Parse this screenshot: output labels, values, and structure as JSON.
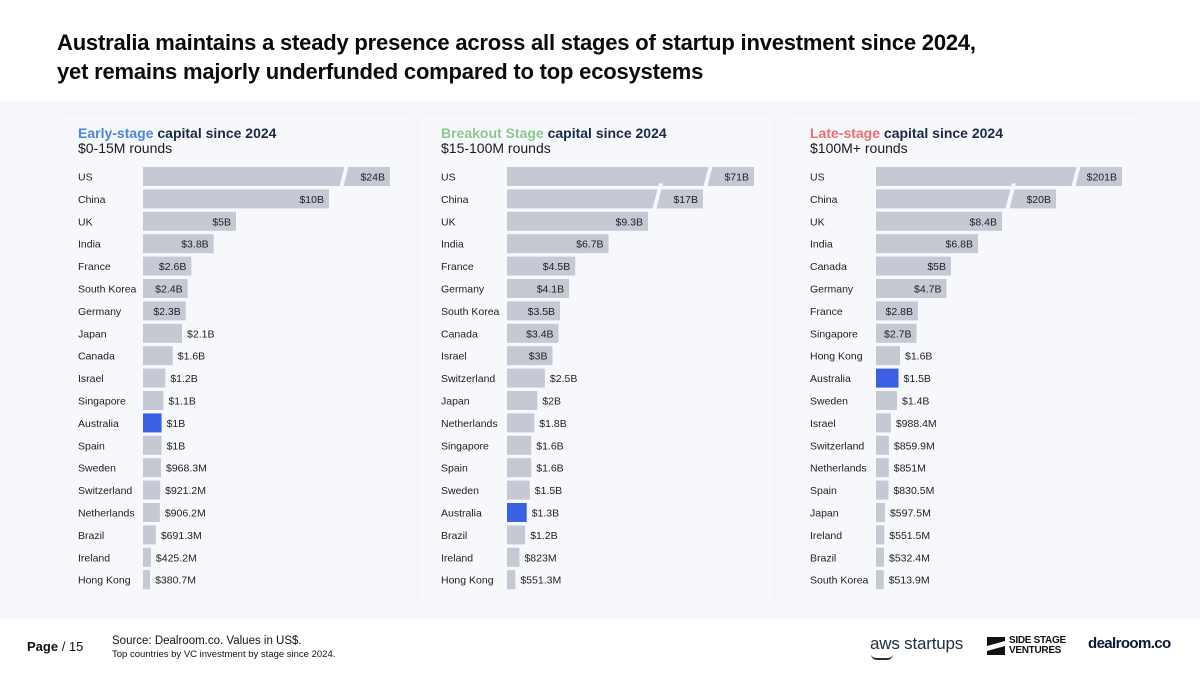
{
  "slide": {
    "title_line1": "Australia maintains a steady presence across all stages of startup investment since 2024,",
    "title_line2": "yet remains majorly underfunded compared to top ecosystems"
  },
  "colors": {
    "bar": "#c6c9d3",
    "highlight": "#3b60e4",
    "early_accent": "#4a86d9",
    "breakout_accent": "#8cc98f",
    "late_accent": "#ef6f6c",
    "title_dark": "#1b2a44"
  },
  "footer": {
    "page_label": "Page",
    "page_sep": "/ 15",
    "source_line1": "Source:  Dealroom.co. Values in US$.",
    "source_line2": "Top  countries by VC investment by stage since 2024.",
    "logos": {
      "aws": "aws startups",
      "ssv_line1": "SIDE STAGE",
      "ssv_line2": "VENTURES",
      "dealroom": "dealroom.co"
    }
  },
  "chart_data": [
    {
      "type": "bar",
      "orientation": "horizontal",
      "title_accent": "Early-stage",
      "title_rest": " capital since 2024",
      "subtitle": "$0-15M rounds",
      "highlight": "Australia",
      "broken_axis_for": [
        "US"
      ],
      "categories": [
        "US",
        "China",
        "UK",
        "India",
        "France",
        "South Korea",
        "Germany",
        "Japan",
        "Canada",
        "Israel",
        "Singapore",
        "Australia",
        "Spain",
        "Sweden",
        "Switzerland",
        "Netherlands",
        "Brazil",
        "Ireland",
        "Hong Kong"
      ],
      "values": [
        24000,
        10000,
        5000,
        3800,
        2600,
        2400,
        2300,
        2100,
        1600,
        1200,
        1100,
        1000,
        1000,
        968.3,
        921.2,
        906.2,
        691.3,
        425.2,
        380.7
      ],
      "labels": [
        "$24B",
        "$10B",
        "$5B",
        "$3.8B",
        "$2.6B",
        "$2.4B",
        "$2.3B",
        "$2.1B",
        "$1.6B",
        "$1.2B",
        "$1.1B",
        "$1B",
        "$1B",
        "$968.3M",
        "$921.2M",
        "$906.2M",
        "$691.3M",
        "$425.2M",
        "$380.7M"
      ],
      "unit": "US$ millions"
    },
    {
      "type": "bar",
      "orientation": "horizontal",
      "title_accent": "Breakout Stage",
      "title_rest": " capital since 2024",
      "subtitle": "$15-100M rounds",
      "highlight": "Australia",
      "broken_axis_for": [
        "US",
        "China"
      ],
      "categories": [
        "US",
        "China",
        "UK",
        "India",
        "France",
        "Germany",
        "South Korea",
        "Canada",
        "Israel",
        "Switzerland",
        "Japan",
        "Netherlands",
        "Singapore",
        "Spain",
        "Sweden",
        "Australia",
        "Brazil",
        "Ireland",
        "Hong Kong"
      ],
      "values": [
        71000,
        17000,
        9300,
        6700,
        4500,
        4100,
        3500,
        3400,
        3000,
        2500,
        2000,
        1800,
        1600,
        1600,
        1500,
        1300,
        1200,
        823,
        551.3
      ],
      "labels": [
        "$71B",
        "$17B",
        "$9.3B",
        "$6.7B",
        "$4.5B",
        "$4.1B",
        "$3.5B",
        "$3.4B",
        "$3B",
        "$2.5B",
        "$2B",
        "$1.8B",
        "$1.6B",
        "$1.6B",
        "$1.5B",
        "$1.3B",
        "$1.2B",
        "$823M",
        "$551.3M"
      ],
      "unit": "US$ millions"
    },
    {
      "type": "bar",
      "orientation": "horizontal",
      "title_accent": "Late-stage",
      "title_rest": " capital since 2024",
      "subtitle": "$100M+ rounds",
      "highlight": "Australia",
      "broken_axis_for": [
        "US",
        "China"
      ],
      "categories": [
        "US",
        "China",
        "UK",
        "India",
        "Canada",
        "Germany",
        "France",
        "Singapore",
        "Hong Kong",
        "Australia",
        "Sweden",
        "Israel",
        "Switzerland",
        "Netherlands",
        "Spain",
        "Japan",
        "Ireland",
        "Brazil",
        "South Korea"
      ],
      "values": [
        201000,
        20000,
        8400,
        6800,
        5000,
        4700,
        2800,
        2700,
        1600,
        1500,
        1400,
        988.4,
        859.9,
        851,
        830.5,
        597.5,
        551.5,
        532.4,
        513.9
      ],
      "labels": [
        "$201B",
        "$20B",
        "$8.4B",
        "$6.8B",
        "$5B",
        "$4.7B",
        "$2.8B",
        "$2.7B",
        "$1.6B",
        "$1.5B",
        "$1.4B",
        "$988.4M",
        "$859.9M",
        "$851M",
        "$830.5M",
        "$597.5M",
        "$551.5M",
        "$532.4M",
        "$513.9M"
      ],
      "unit": "US$ millions"
    }
  ]
}
